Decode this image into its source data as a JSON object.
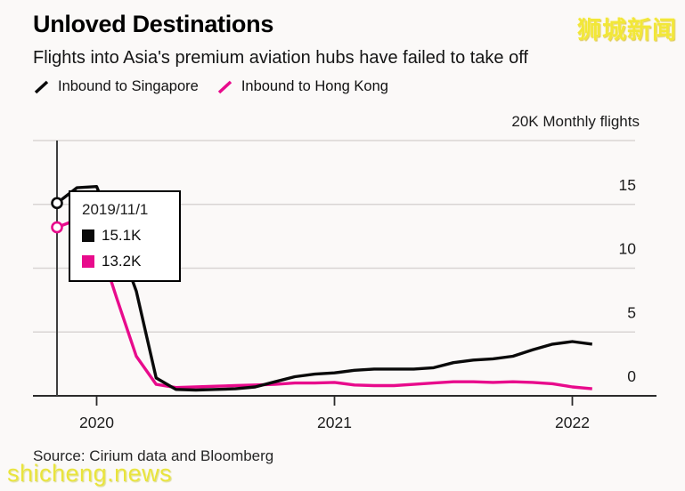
{
  "page": {
    "background": "#fbf9f8"
  },
  "header": {
    "title": "Unloved Destinations",
    "subtitle": "Flights into Asia's premium aviation hubs have failed to take off"
  },
  "legend": {
    "items": [
      {
        "label": "Inbound to Singapore",
        "color": "#0a0a0a"
      },
      {
        "label": "Inbound to Hong Kong",
        "color": "#e80b8c"
      }
    ]
  },
  "axis_unit_label": "20K Monthly flights",
  "tooltip": {
    "date": "2019/11/1",
    "items": [
      {
        "label": "15.1K",
        "color": "#0a0a0a"
      },
      {
        "label": "13.2K",
        "color": "#e80b8c"
      }
    ]
  },
  "source": "Source: Cirium data and Bloomberg",
  "watermarks": {
    "top_right": {
      "text": "狮城新闻",
      "color": "#f2e738"
    },
    "bottom_left": {
      "text": "shicheng.news",
      "color": "#e9e43c"
    }
  },
  "chart_data": {
    "type": "line",
    "title": "Unloved Destinations",
    "subtitle": "Flights into Asia's premium aviation hubs have failed to take off",
    "unit": "K monthly flights",
    "axis_unit_label": "20K Monthly flights",
    "grid": true,
    "legend_position": "top-left",
    "x": [
      "2019-11",
      "2019-12",
      "2020-01",
      "2020-02",
      "2020-03",
      "2020-04",
      "2020-05",
      "2020-06",
      "2020-07",
      "2020-08",
      "2020-09",
      "2020-10",
      "2020-11",
      "2020-12",
      "2021-01",
      "2021-02",
      "2021-03",
      "2021-04",
      "2021-05",
      "2021-06",
      "2021-07",
      "2021-08",
      "2021-09",
      "2021-10",
      "2021-11",
      "2021-12",
      "2022-01",
      "2022-02"
    ],
    "series": [
      {
        "id": "singapore",
        "name": "Inbound to Singapore",
        "color": "#0a0a0a",
        "values": [
          15.1,
          16.3,
          16.4,
          12.5,
          8.2,
          1.4,
          0.5,
          0.45,
          0.5,
          0.55,
          0.7,
          1.1,
          1.5,
          1.7,
          1.8,
          2.0,
          2.1,
          2.1,
          2.1,
          2.2,
          2.6,
          2.8,
          2.9,
          3.1,
          3.6,
          4.05,
          4.25,
          4.05
        ]
      },
      {
        "id": "hongkong",
        "name": "Inbound to Hong Kong",
        "color": "#e80b8c",
        "values": [
          13.2,
          13.8,
          12.5,
          7.7,
          3.1,
          0.9,
          0.65,
          0.7,
          0.75,
          0.8,
          0.85,
          0.9,
          1.0,
          1.0,
          1.05,
          0.85,
          0.8,
          0.8,
          0.9,
          1.0,
          1.1,
          1.1,
          1.05,
          1.1,
          1.05,
          0.95,
          0.7,
          0.55
        ]
      }
    ],
    "y_axis": {
      "min": 0,
      "max": 20,
      "gridline_values": [
        20,
        15,
        10,
        5,
        0
      ],
      "tick_labels": [
        {
          "value": 15,
          "label": "15"
        },
        {
          "value": 10,
          "label": "10"
        },
        {
          "value": 5,
          "label": "5"
        },
        {
          "value": 0,
          "label": "0"
        }
      ]
    },
    "x_axis": {
      "tick_labels": [
        {
          "index": 2,
          "label": "2020"
        },
        {
          "index": 14,
          "label": "2021"
        },
        {
          "index": 26,
          "label": "2022"
        }
      ]
    },
    "highlight": {
      "index": 0,
      "date": "2019/11/1",
      "marker_values": [
        15.1,
        13.2
      ]
    }
  }
}
